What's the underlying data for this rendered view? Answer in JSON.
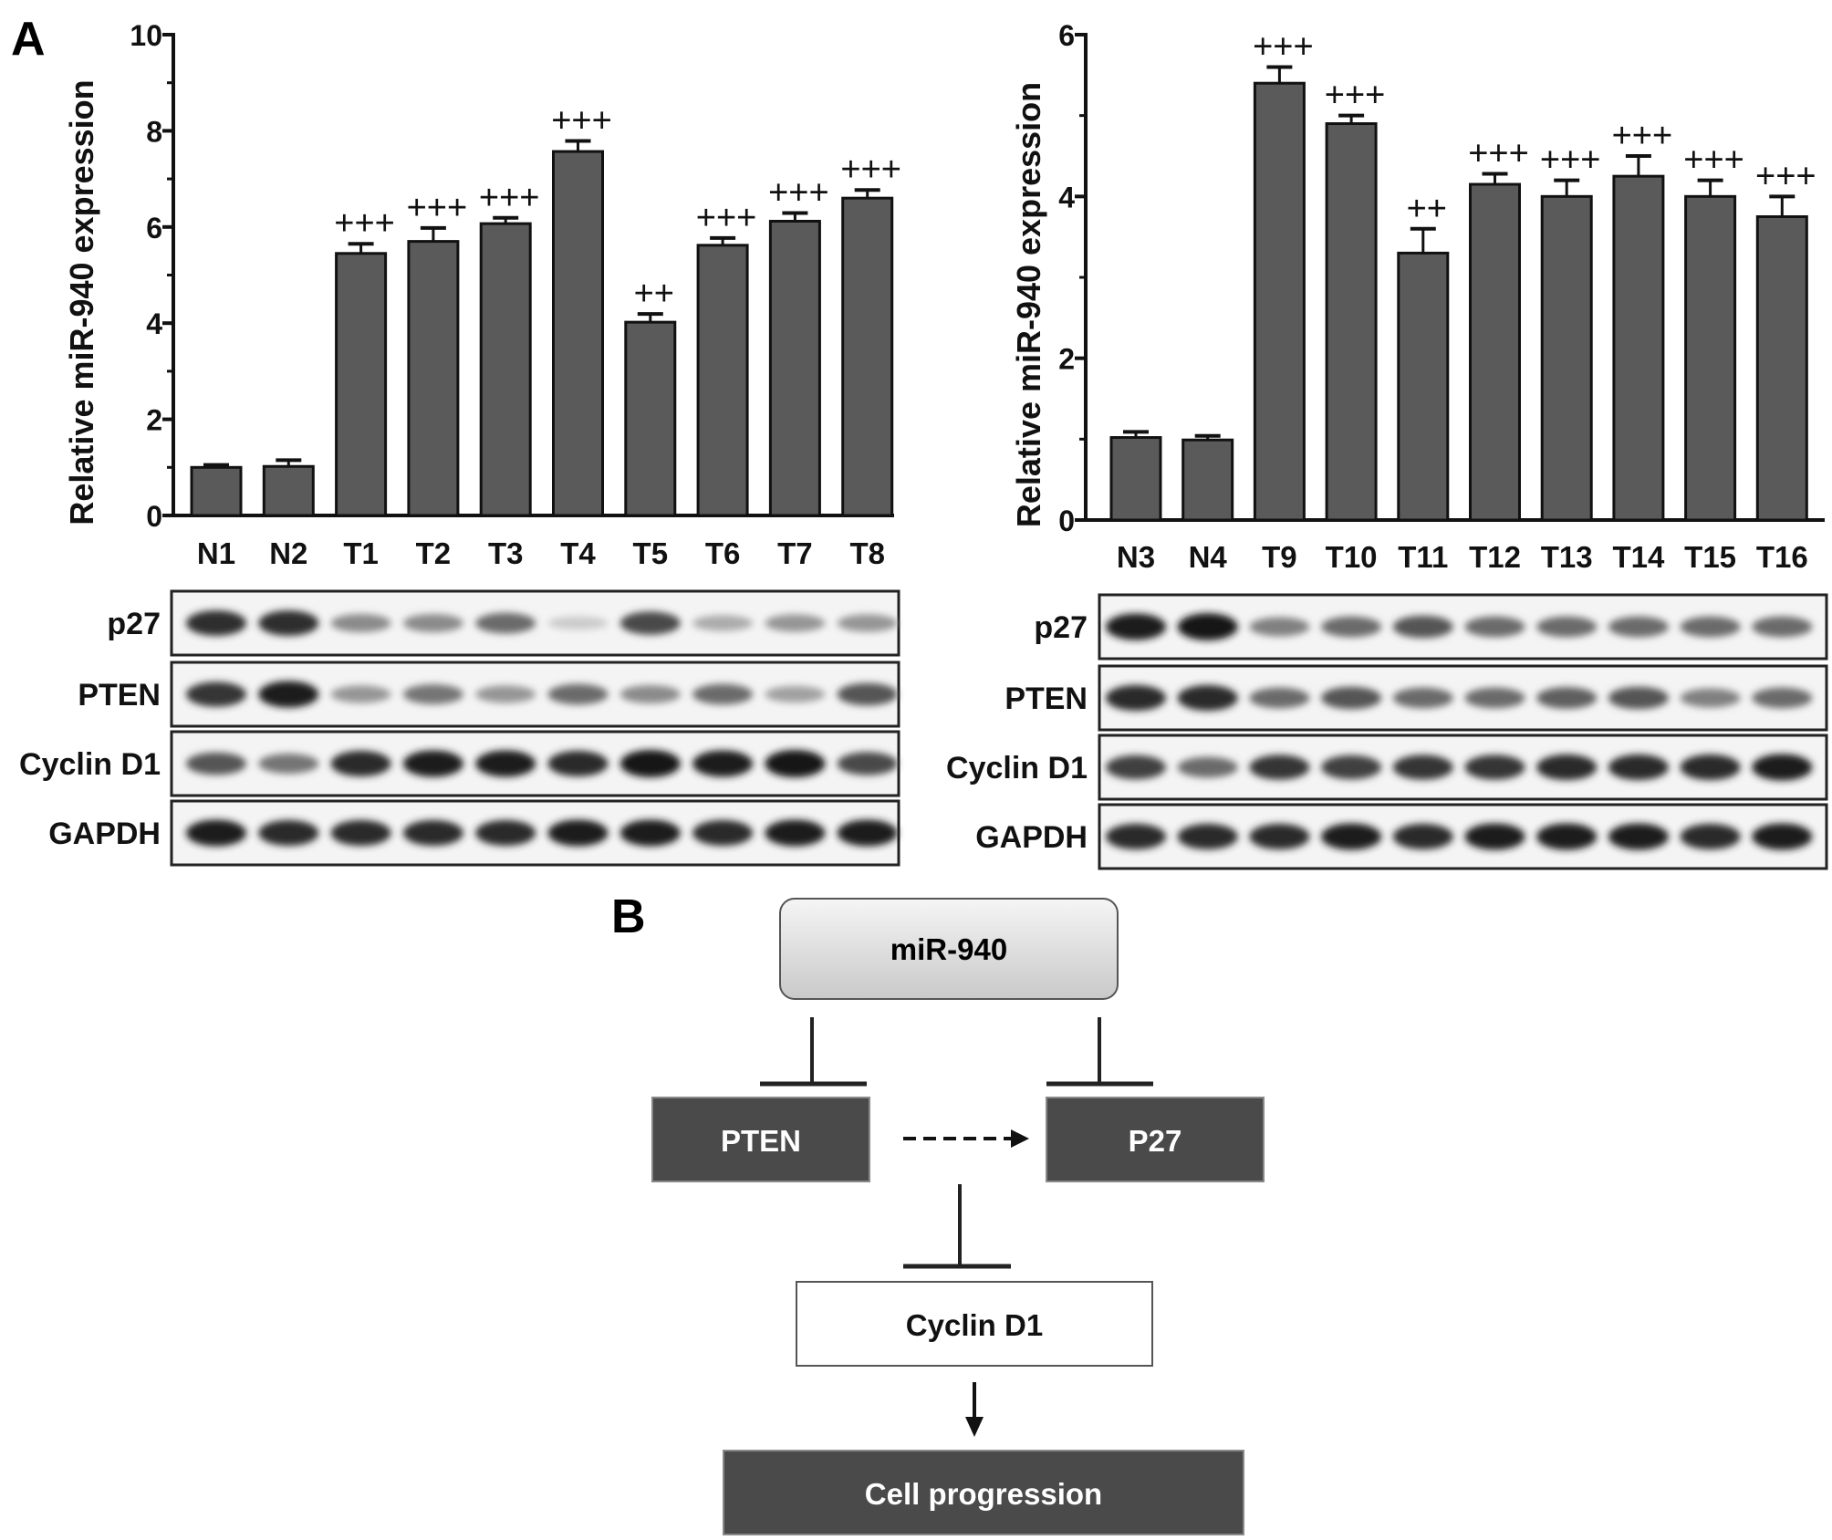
{
  "figure": {
    "panel_a_letter": "A",
    "panel_b_letter": "B"
  },
  "chart_data": [
    {
      "type": "bar",
      "ylabel": "Relative miR-940 expression",
      "xlabel": "",
      "ylim": [
        0,
        10
      ],
      "yticks": [
        "0",
        "2",
        "4",
        "6",
        "8",
        "10"
      ],
      "categories": [
        "N1",
        "N2",
        "T1",
        "T2",
        "T3",
        "T4",
        "T5",
        "T6",
        "T7",
        "T8"
      ],
      "values": [
        1.0,
        1.02,
        5.45,
        5.7,
        6.07,
        7.57,
        4.02,
        5.62,
        6.12,
        6.6
      ],
      "errors": [
        0.05,
        0.13,
        0.2,
        0.28,
        0.12,
        0.22,
        0.17,
        0.15,
        0.17,
        0.17
      ],
      "significance": [
        "",
        "",
        "+++",
        "+++",
        "+++",
        "+++",
        "++",
        "+++",
        "+++",
        "+++"
      ],
      "bar_color": "#5a5a5a",
      "grid": false
    },
    {
      "type": "bar",
      "ylabel": "Relative miR-940 expression",
      "xlabel": "",
      "ylim": [
        0,
        6
      ],
      "yticks": [
        "0",
        "2",
        "4",
        "6"
      ],
      "categories": [
        "N3",
        "N4",
        "T9",
        "T10",
        "T11",
        "T12",
        "T13",
        "T14",
        "T15",
        "T16"
      ],
      "values": [
        1.02,
        0.99,
        5.4,
        4.9,
        3.3,
        4.15,
        4.0,
        4.25,
        4.0,
        3.75
      ],
      "errors": [
        0.07,
        0.05,
        0.2,
        0.1,
        0.3,
        0.13,
        0.2,
        0.25,
        0.2,
        0.25
      ],
      "significance": [
        "",
        "",
        "+++",
        "+++",
        "++",
        "+++",
        "+++",
        "+++",
        "+++",
        "+++"
      ],
      "bar_color": "#5a5a5a",
      "grid": false
    }
  ],
  "western_blot": {
    "rows": [
      "p27",
      "PTEN",
      "Cyclin D1",
      "GAPDH"
    ],
    "left_intensity": {
      "p27": [
        0.88,
        0.88,
        0.45,
        0.45,
        0.6,
        0.15,
        0.75,
        0.3,
        0.4,
        0.4
      ],
      "PTEN": [
        0.85,
        0.95,
        0.4,
        0.55,
        0.4,
        0.6,
        0.45,
        0.6,
        0.35,
        0.7
      ],
      "Cyclin D1": [
        0.7,
        0.55,
        0.9,
        0.95,
        0.95,
        0.9,
        1.0,
        0.95,
        1.0,
        0.75
      ],
      "GAPDH": [
        0.95,
        0.9,
        0.9,
        0.9,
        0.9,
        0.95,
        0.95,
        0.9,
        0.95,
        0.95
      ]
    },
    "right_intensity": {
      "p27": [
        0.95,
        0.98,
        0.5,
        0.6,
        0.7,
        0.6,
        0.6,
        0.6,
        0.6,
        0.6
      ],
      "PTEN": [
        0.9,
        0.9,
        0.6,
        0.7,
        0.6,
        0.6,
        0.65,
        0.7,
        0.5,
        0.6
      ],
      "Cyclin D1": [
        0.8,
        0.6,
        0.85,
        0.8,
        0.85,
        0.85,
        0.9,
        0.9,
        0.9,
        0.95
      ],
      "GAPDH": [
        0.9,
        0.9,
        0.9,
        0.95,
        0.9,
        0.95,
        0.95,
        0.95,
        0.9,
        0.95
      ]
    }
  },
  "diagram": {
    "nodes": {
      "mir940": "miR-940",
      "pten": "PTEN",
      "p27": "P27",
      "cyclin": "Cyclin D1",
      "progression": "Cell progression"
    },
    "edges": [
      {
        "from": "miR-940",
        "to": "PTEN",
        "kind": "inhibit"
      },
      {
        "from": "miR-940",
        "to": "P27",
        "kind": "inhibit"
      },
      {
        "from": "PTEN",
        "to": "P27",
        "kind": "dashed-arrow"
      },
      {
        "from": "PTEN/P27",
        "to": "Cyclin D1",
        "kind": "inhibit"
      },
      {
        "from": "Cyclin D1",
        "to": "Cell progression",
        "kind": "arrow"
      }
    ],
    "colors": {
      "dark_box": "#4a4a4a",
      "gray_box_top": "#f2f2f2",
      "gray_box_bottom": "#cfcfcf"
    }
  }
}
